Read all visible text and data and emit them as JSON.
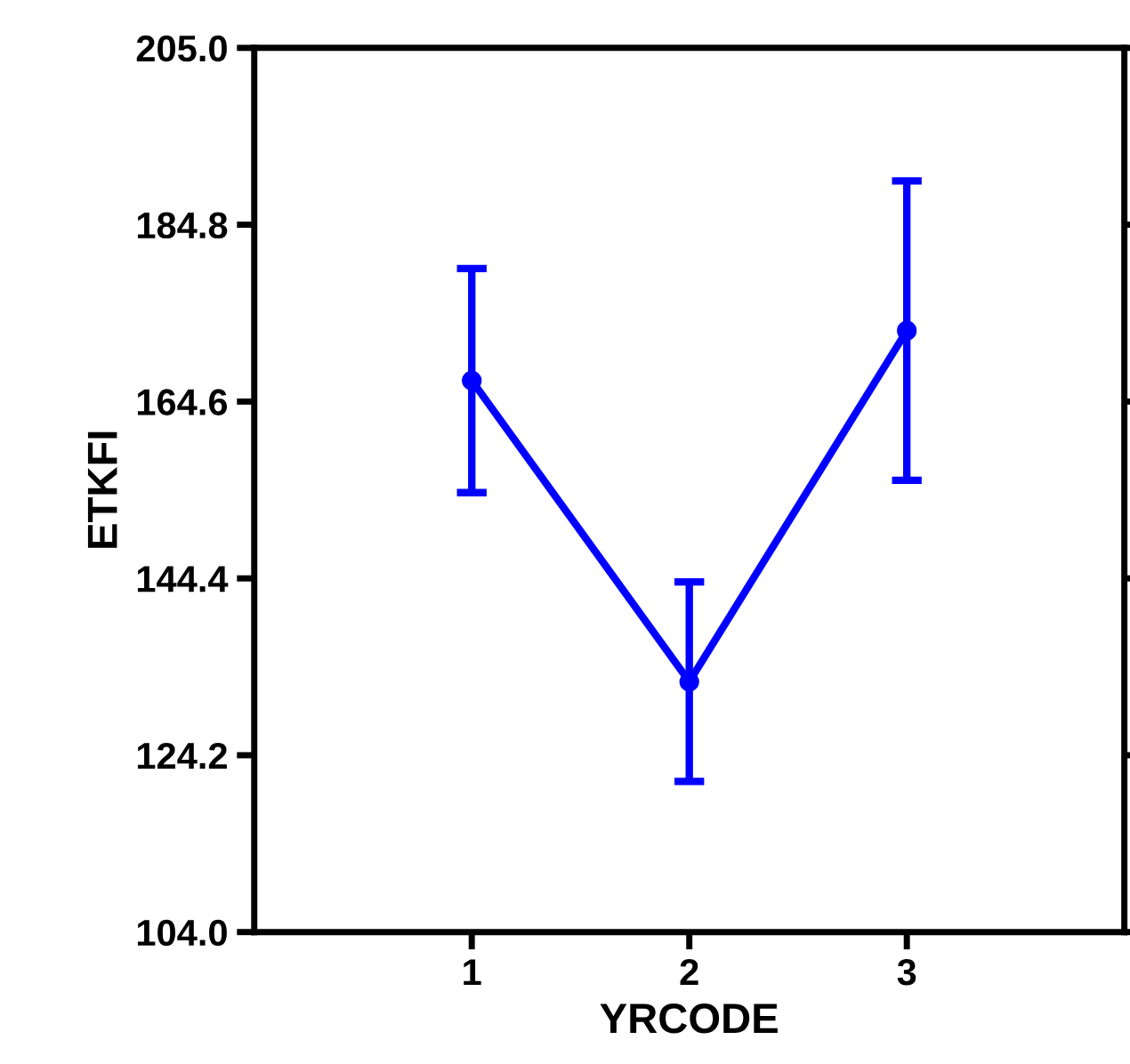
{
  "chart_data": {
    "type": "line",
    "xlabel": "YRCODE",
    "ylabel": "ETKFI",
    "x": [
      1,
      2,
      3
    ],
    "series": [
      {
        "color": "#0000ff",
        "values": [
          167.0,
          132.6,
          172.7
        ],
        "errors": [
          12.8,
          11.4,
          17.1
        ]
      }
    ],
    "xlim": [
      0,
      4
    ],
    "xticks": [
      1,
      2,
      3
    ],
    "ylim": [
      104.0,
      205.0
    ],
    "yticks": [
      {
        "value": 104.0,
        "label": "104.0"
      },
      {
        "value": 124.2,
        "label": "124.2"
      },
      {
        "value": 144.4,
        "label": "144.4"
      },
      {
        "value": 164.6,
        "label": "164.6"
      },
      {
        "value": 184.8,
        "label": "184.8"
      },
      {
        "value": 205.0,
        "label": "205.0"
      }
    ],
    "grid": false,
    "marker": "circle",
    "line_style": "solid"
  }
}
